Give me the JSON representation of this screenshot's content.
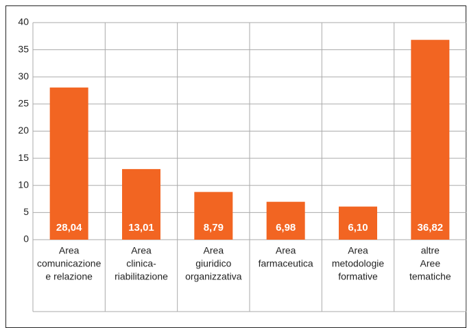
{
  "chart_data": {
    "type": "bar",
    "categories": [
      [
        "Area",
        "comunicazione",
        "e relazione"
      ],
      [
        "Area",
        "clinica-",
        "riabilitazione"
      ],
      [
        "Area",
        "giuridico",
        "organizzativa"
      ],
      [
        "Area",
        "farmaceutica"
      ],
      [
        "Area",
        "metodologie",
        "formative"
      ],
      [
        "altre",
        "Aree",
        "tematiche"
      ]
    ],
    "values": [
      28.04,
      13.01,
      8.79,
      6.98,
      6.1,
      36.82
    ],
    "value_labels": [
      "28,04",
      "13,01",
      "8,79",
      "6,98",
      "6,10",
      "36,82"
    ],
    "color": "#f26522",
    "ylim": [
      0,
      40
    ],
    "yticks": [
      0,
      5,
      10,
      15,
      20,
      25,
      30,
      35,
      40
    ],
    "grid": true
  }
}
